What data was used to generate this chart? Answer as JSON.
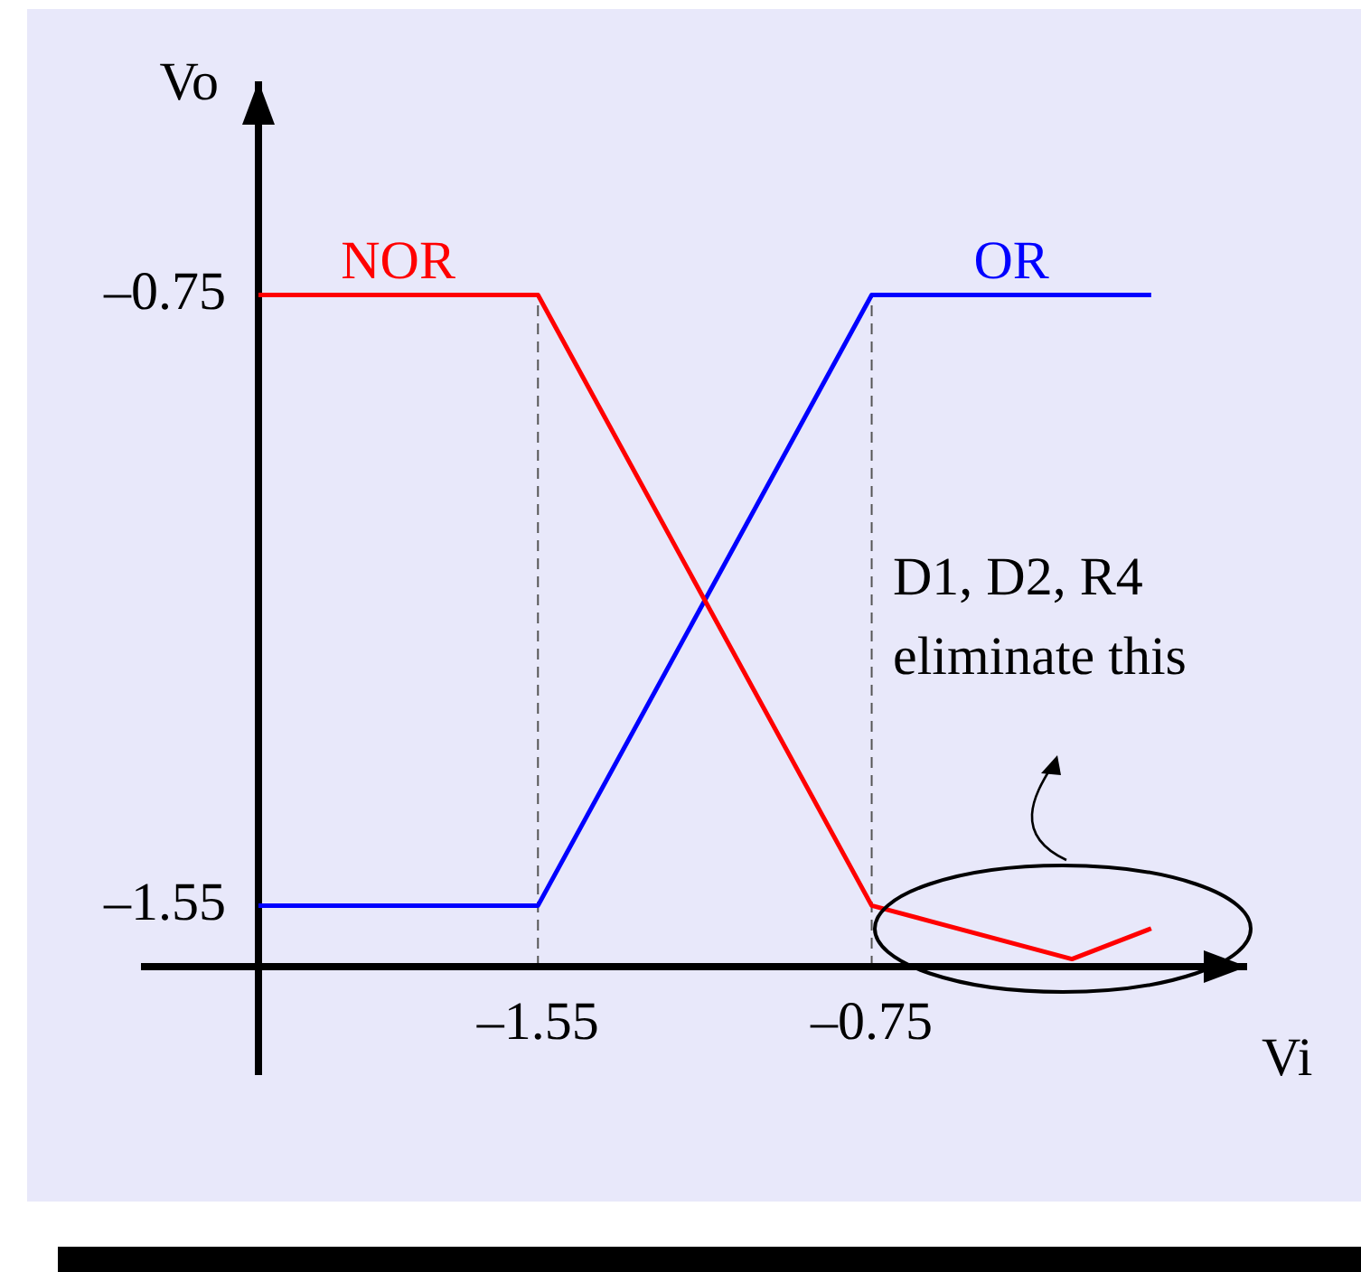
{
  "chart_data": {
    "type": "line",
    "xlabel": "Vi",
    "ylabel": "Vo",
    "xlim": [
      -2.22,
      0.15
    ],
    "ylim": [
      -1.63,
      -0.47
    ],
    "xticks": [
      {
        "value": -1.55,
        "label": "–1.55"
      },
      {
        "value": -0.75,
        "label": "–0.75"
      }
    ],
    "yticks": [
      {
        "value": -0.75,
        "label": "–0.75"
      },
      {
        "value": -1.55,
        "label": "–1.55"
      }
    ],
    "series": [
      {
        "name": "NOR",
        "color": "#ff0000",
        "x": [
          -2.22,
          -1.55,
          -0.75,
          -0.27,
          -0.08
        ],
        "values": [
          -0.75,
          -0.75,
          -1.55,
          -1.62,
          -1.58
        ]
      },
      {
        "name": "OR",
        "color": "#0000ff",
        "x": [
          -2.22,
          -1.55,
          -0.75,
          -0.08
        ],
        "values": [
          -1.55,
          -1.55,
          -0.75,
          -0.75
        ]
      }
    ],
    "ref_lines": [
      {
        "axis": "x",
        "value": -1.55,
        "color": "#555555",
        "line_style": "dashed"
      },
      {
        "axis": "x",
        "value": -0.75,
        "color": "#555555",
        "line_style": "dashed"
      }
    ],
    "annotations": [
      "D1, D2, R4 eliminate this"
    ],
    "grid": false,
    "legend": false,
    "marker": "none",
    "line_style": "solid"
  }
}
